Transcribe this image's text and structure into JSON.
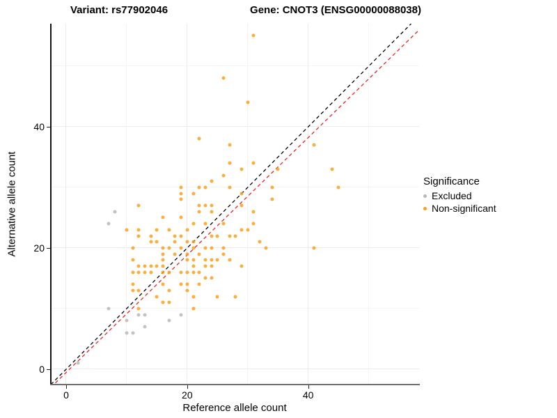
{
  "titles": {
    "left": "Variant: rs77902046",
    "right": "Gene: CNOT3 (ENSG00000088038)"
  },
  "legend": {
    "title": "Significance",
    "items": [
      {
        "label": "Excluded",
        "color": "#b8b8b8"
      },
      {
        "label": "Non-significant",
        "color": "#f9a11b"
      }
    ]
  },
  "chart_data": {
    "type": "scatter",
    "xlabel": "Reference allele count",
    "ylabel": "Alternative allele count",
    "x_ticks": [
      0,
      20,
      40
    ],
    "y_ticks": [
      0,
      20,
      40
    ],
    "x_minor": [
      10,
      30,
      50
    ],
    "y_minor": [
      10,
      30,
      50
    ],
    "xlim": [
      -2.53,
      58.33
    ],
    "ylim": [
      -2.53,
      57.01
    ],
    "grid": "on",
    "legend_position": "right",
    "series": [
      {
        "name": "Excluded",
        "color": "#b8b8b8",
        "points": [
          [
            2,
            1
          ],
          [
            7,
            10
          ],
          [
            10,
            6
          ],
          [
            11,
            6
          ],
          [
            10,
            8
          ],
          [
            12,
            9
          ],
          [
            13,
            9
          ],
          [
            13,
            7
          ],
          [
            17,
            8
          ],
          [
            19,
            9
          ],
          [
            7,
            24
          ],
          [
            8,
            26
          ]
        ]
      },
      {
        "name": "Non-significant",
        "color": "#f9a11b",
        "points": [
          [
            31,
            55
          ],
          [
            26,
            48
          ],
          [
            30,
            44
          ],
          [
            22,
            38
          ],
          [
            27,
            37
          ],
          [
            41,
            37
          ],
          [
            27,
            34
          ],
          [
            31,
            34
          ],
          [
            29,
            33
          ],
          [
            35,
            33
          ],
          [
            44,
            33
          ],
          [
            26,
            32
          ],
          [
            24,
            31
          ],
          [
            19,
            30
          ],
          [
            22,
            30
          ],
          [
            23,
            30
          ],
          [
            27,
            30
          ],
          [
            34,
            30
          ],
          [
            45,
            30
          ],
          [
            19,
            29
          ],
          [
            21,
            29
          ],
          [
            29,
            29
          ],
          [
            19,
            28
          ],
          [
            34,
            28
          ],
          [
            12,
            27
          ],
          [
            22,
            27
          ],
          [
            23,
            27
          ],
          [
            24,
            27
          ],
          [
            29,
            27
          ],
          [
            22,
            26
          ],
          [
            24,
            26
          ],
          [
            31,
            26
          ],
          [
            16,
            25
          ],
          [
            19,
            25
          ],
          [
            21,
            24
          ],
          [
            23,
            24
          ],
          [
            26,
            24
          ],
          [
            31,
            24
          ],
          [
            10,
            23
          ],
          [
            12,
            23
          ],
          [
            15,
            23
          ],
          [
            17,
            23
          ],
          [
            20,
            23
          ],
          [
            29,
            23
          ],
          [
            30,
            23
          ],
          [
            12,
            22
          ],
          [
            14,
            22
          ],
          [
            18,
            22
          ],
          [
            19,
            22
          ],
          [
            24,
            22
          ],
          [
            25,
            22
          ],
          [
            27,
            22
          ],
          [
            28,
            22
          ],
          [
            14,
            21
          ],
          [
            15,
            21
          ],
          [
            18,
            21
          ],
          [
            20,
            21
          ],
          [
            21,
            21
          ],
          [
            32,
            21
          ],
          [
            11,
            20
          ],
          [
            16,
            20
          ],
          [
            17,
            20
          ],
          [
            19,
            20
          ],
          [
            21,
            20
          ],
          [
            23,
            20
          ],
          [
            24,
            20
          ],
          [
            26,
            20
          ],
          [
            33,
            20
          ],
          [
            41,
            20
          ],
          [
            16,
            19
          ],
          [
            18,
            19
          ],
          [
            20,
            19
          ],
          [
            22,
            19
          ],
          [
            26,
            19
          ],
          [
            11,
            18
          ],
          [
            16,
            18
          ],
          [
            20,
            18
          ],
          [
            21,
            18
          ],
          [
            23,
            18
          ],
          [
            24,
            18
          ],
          [
            25,
            18
          ],
          [
            27,
            18
          ],
          [
            12,
            17
          ],
          [
            13,
            17
          ],
          [
            14,
            17
          ],
          [
            15,
            17
          ],
          [
            16,
            17
          ],
          [
            21,
            17
          ],
          [
            23,
            17
          ],
          [
            24,
            17
          ],
          [
            29,
            17
          ],
          [
            11,
            16
          ],
          [
            12,
            16
          ],
          [
            13,
            16
          ],
          [
            14,
            16
          ],
          [
            16,
            16
          ],
          [
            17,
            16
          ],
          [
            19,
            16
          ],
          [
            20,
            16
          ],
          [
            21,
            16
          ],
          [
            22,
            16
          ],
          [
            23,
            15
          ],
          [
            24,
            15
          ],
          [
            11,
            14
          ],
          [
            16,
            14
          ],
          [
            19,
            14
          ],
          [
            20,
            14
          ],
          [
            22,
            14
          ],
          [
            11,
            13
          ],
          [
            12,
            13
          ],
          [
            17,
            13
          ],
          [
            20,
            13
          ],
          [
            15,
            12
          ],
          [
            21,
            12
          ],
          [
            25,
            12
          ],
          [
            28,
            12
          ],
          [
            16,
            11
          ],
          [
            17,
            11
          ],
          [
            12,
            10
          ],
          [
            21,
            10
          ]
        ]
      }
    ],
    "lines": [
      {
        "name": "identity-line",
        "color": "#000000",
        "style": "dashed",
        "from": [
          -2.53,
          -2.53
        ],
        "to": [
          57.01,
          57.01
        ]
      },
      {
        "name": "fit-line",
        "color": "#ee2222",
        "style": "dashed",
        "from": [
          -2.53,
          -2.99
        ],
        "to": [
          58.33,
          55.98
        ]
      }
    ]
  }
}
